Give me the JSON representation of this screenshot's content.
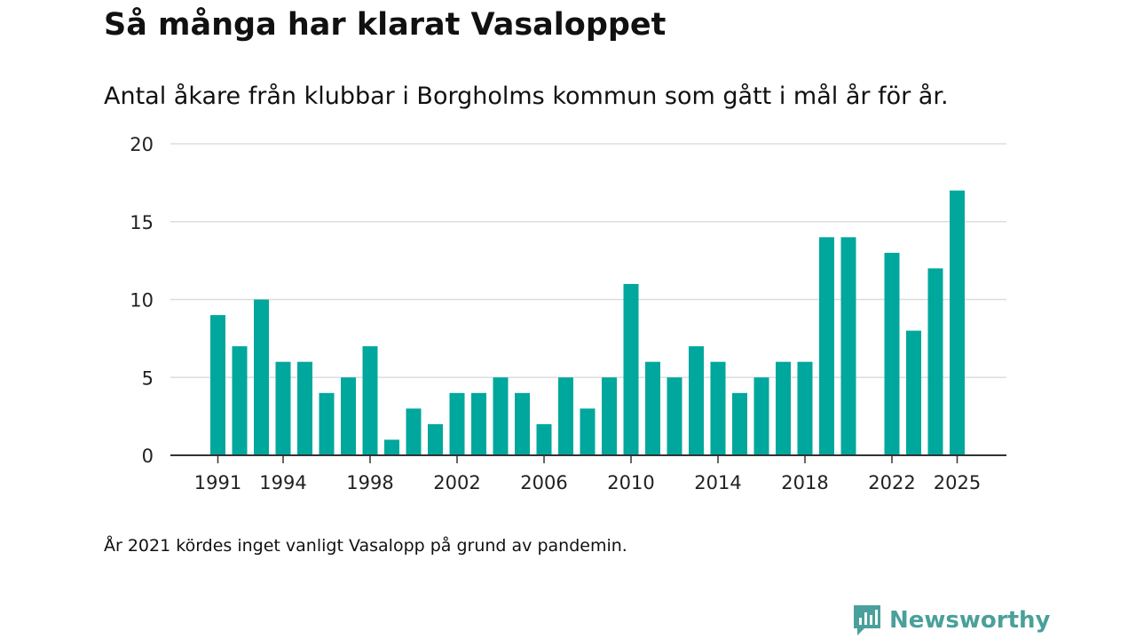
{
  "title": "Så många har klarat Vasaloppet",
  "subtitle": "Antal åkare från klubbar i Borgholms kommun som gått i mål år för år.",
  "note": "År 2021 kördes inget vanligt Vasalopp på grund av pandemin.",
  "brand": {
    "name": "Newsworthy",
    "icon": "newsworthy-logo-icon"
  },
  "colors": {
    "bar": "#00a79d",
    "grid": "#dddddd",
    "axis": "#333333",
    "brand": "#4aa09a"
  },
  "chart_data": {
    "type": "bar",
    "title": "Så många har klarat Vasaloppet",
    "xlabel": "",
    "ylabel": "",
    "ylim": [
      0,
      20
    ],
    "yticks": [
      0,
      5,
      10,
      15,
      20
    ],
    "xticks": [
      1991,
      1994,
      1998,
      2002,
      2006,
      2010,
      2014,
      2018,
      2022,
      2025
    ],
    "grid": true,
    "categories": [
      1991,
      1992,
      1993,
      1994,
      1995,
      1996,
      1997,
      1998,
      1999,
      2000,
      2001,
      2002,
      2003,
      2004,
      2005,
      2006,
      2007,
      2008,
      2009,
      2010,
      2011,
      2012,
      2013,
      2014,
      2015,
      2016,
      2017,
      2018,
      2019,
      2020,
      2021,
      2022,
      2023,
      2024,
      2025
    ],
    "values": [
      9,
      7,
      10,
      6,
      6,
      4,
      5,
      7,
      1,
      3,
      2,
      4,
      4,
      5,
      4,
      2,
      5,
      3,
      5,
      11,
      6,
      5,
      7,
      6,
      4,
      5,
      6,
      6,
      14,
      14,
      null,
      13,
      8,
      12,
      17
    ]
  }
}
